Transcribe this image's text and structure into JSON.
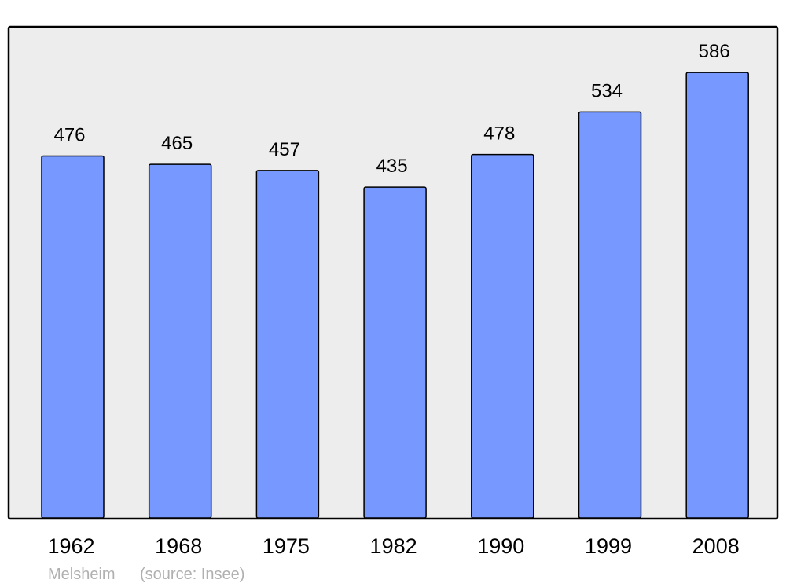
{
  "chart_data": {
    "type": "bar",
    "categories": [
      "1962",
      "1968",
      "1975",
      "1982",
      "1990",
      "1999",
      "2008"
    ],
    "values": [
      476,
      465,
      457,
      435,
      478,
      534,
      586
    ],
    "title": "",
    "xlabel": "",
    "ylabel": "",
    "ylim": [
      0,
      645
    ],
    "grid": false,
    "data_labels": true,
    "colors": {
      "bar": "#7799ff",
      "plot_background": "#ededed",
      "frame": "#000000"
    },
    "footer": {
      "place": "Melsheim",
      "source": "(source: Insee)"
    }
  }
}
